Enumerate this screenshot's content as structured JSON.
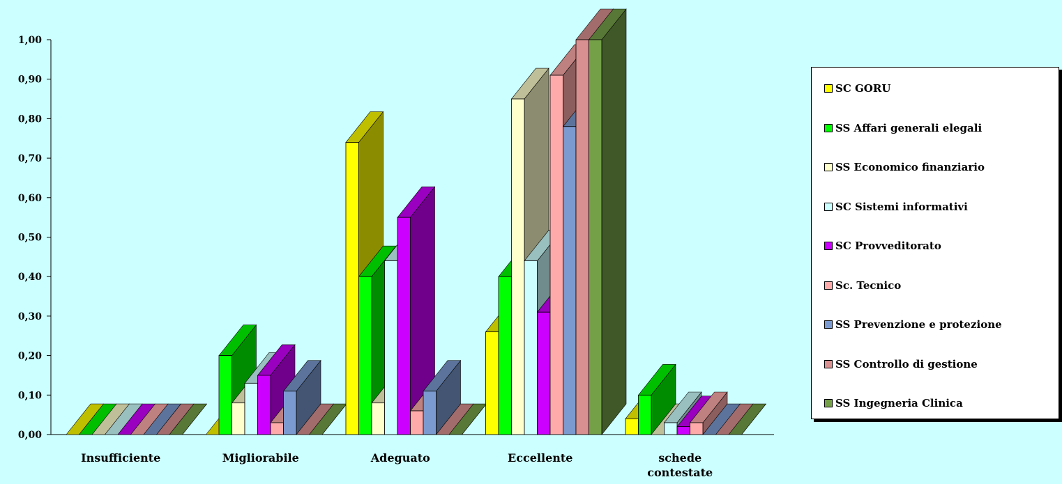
{
  "chart_data": {
    "type": "bar",
    "title": "",
    "xlabel": "",
    "ylabel": "",
    "ylim": [
      0,
      1
    ],
    "y_ticks": [
      "0,00",
      "0,10",
      "0,20",
      "0,30",
      "0,40",
      "0,50",
      "0,60",
      "0,70",
      "0,80",
      "0,90",
      "1,00"
    ],
    "categories": [
      [
        "Insufficiente"
      ],
      [
        "Migliorabile"
      ],
      [
        "Adeguato"
      ],
      [
        "Eccellente"
      ],
      [
        "schede",
        "contestate"
      ]
    ],
    "legend_position": "right",
    "series": [
      {
        "name": "SC GORU",
        "color": "#ffff00",
        "values": [
          0.0,
          0.0,
          0.74,
          0.26,
          0.04
        ]
      },
      {
        "name": "SS Affari generali elegali",
        "color": "#00ff00",
        "values": [
          0.0,
          0.2,
          0.4,
          0.4,
          0.1
        ]
      },
      {
        "name": "SS Economico finanziario",
        "color": "#ffffcc",
        "values": [
          0.0,
          0.08,
          0.08,
          0.85,
          0.0
        ]
      },
      {
        "name": "SC Sistemi informativi",
        "color": "#ccffff",
        "values": [
          0.0,
          0.13,
          0.44,
          0.44,
          0.03
        ]
      },
      {
        "name": "SC Provveditorato",
        "color": "#cc00ff",
        "values": [
          0.0,
          0.15,
          0.55,
          0.31,
          0.02
        ]
      },
      {
        "name": "Sc. Tecnico",
        "color": "#ffaaaa",
        "values": [
          0.0,
          0.03,
          0.06,
          0.91,
          0.03
        ]
      },
      {
        "name": "SS Prevenzione e protezione",
        "color": "#7a9ad0",
        "values": [
          0.0,
          0.11,
          0.11,
          0.78,
          0.0
        ]
      },
      {
        "name": "SS Controllo di gestione",
        "color": "#d89090",
        "values": [
          0.0,
          0.0,
          0.0,
          1.0,
          0.0
        ]
      },
      {
        "name": "SS Ingegneria Clinica",
        "color": "#74a048",
        "values": [
          0.0,
          0.0,
          0.0,
          1.0,
          0.0
        ]
      }
    ]
  }
}
